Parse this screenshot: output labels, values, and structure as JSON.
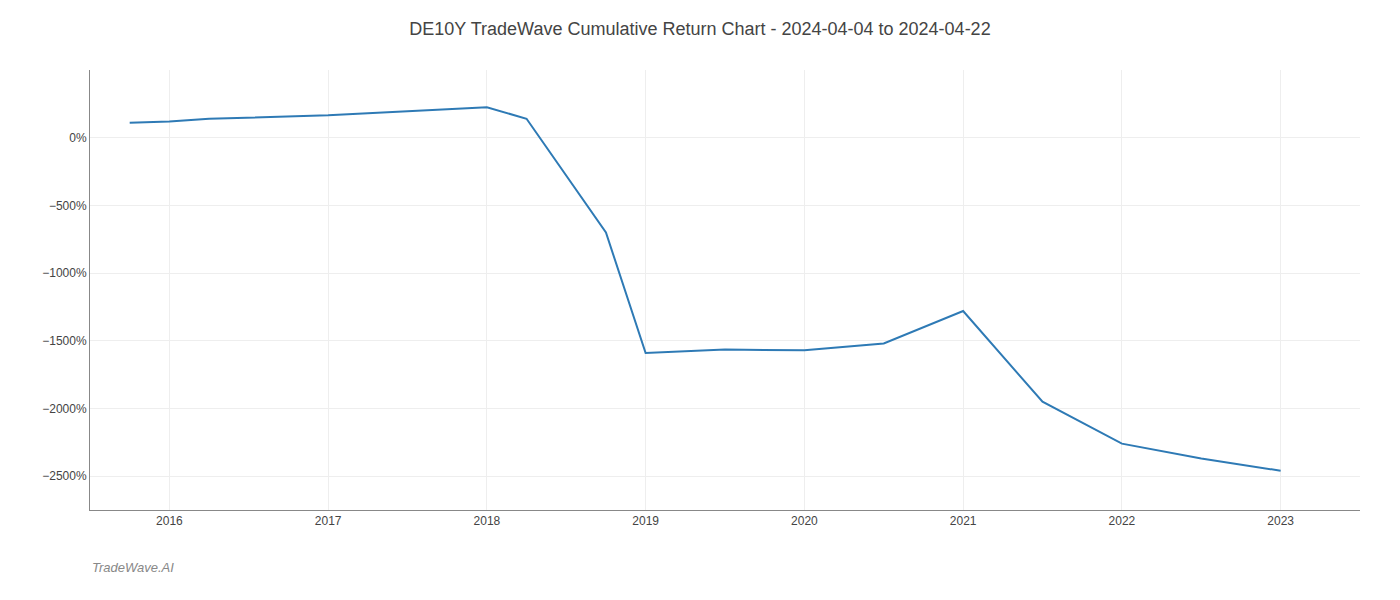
{
  "chart_data": {
    "type": "line",
    "title": "DE10Y TradeWave Cumulative Return Chart - 2024-04-04 to 2024-04-22",
    "annotations": [
      "TradeWave.AI"
    ],
    "x": [
      2015.75,
      2016.0,
      2016.25,
      2017.0,
      2017.5,
      2018.0,
      2018.25,
      2018.75,
      2019.0,
      2019.5,
      2020.0,
      2020.5,
      2021.0,
      2021.5,
      2022.0,
      2022.5,
      2023.0
    ],
    "values": [
      110,
      120,
      140,
      165,
      195,
      225,
      140,
      -700,
      -1590,
      -1565,
      -1570,
      -1520,
      -1280,
      -1950,
      -2260,
      -2370,
      -2460
    ],
    "color": "#2e7ab5",
    "xlim": [
      2015.5,
      2023.5
    ],
    "xticks": [
      2016,
      2017,
      2018,
      2019,
      2020,
      2021,
      2022,
      2023
    ],
    "ylim": [
      -2750,
      500
    ],
    "yticks": [
      {
        "value": 0,
        "label": "0%"
      },
      {
        "value": -500,
        "label": "−500%"
      },
      {
        "value": -1000,
        "label": "−1000%"
      },
      {
        "value": -1500,
        "label": "−1500%"
      },
      {
        "value": -2000,
        "label": "−2000%"
      },
      {
        "value": -2500,
        "label": "−2500%"
      }
    ],
    "grid": true
  }
}
